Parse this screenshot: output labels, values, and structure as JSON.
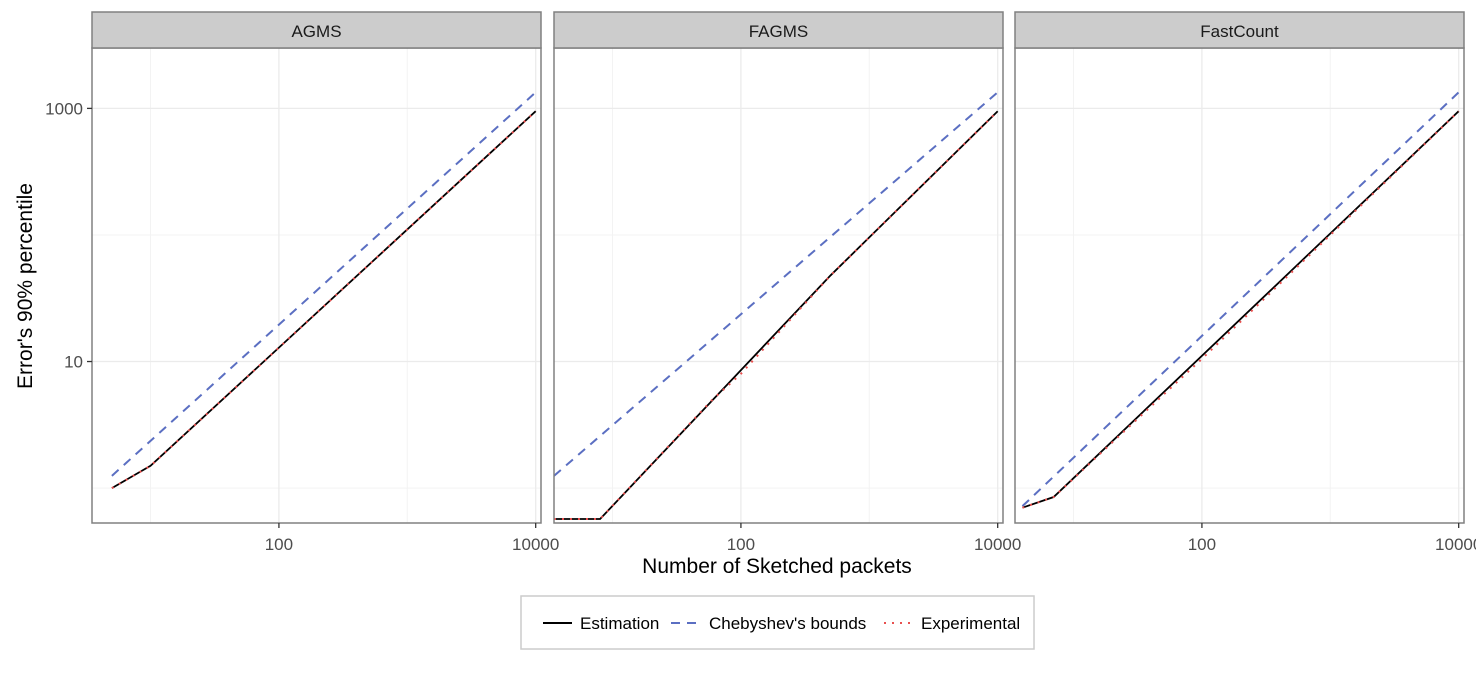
{
  "chart_data": {
    "type": "line",
    "xlabel": "Number of Sketched packets",
    "ylabel": "Error's 90% percentile",
    "x_scale": "log10",
    "y_scale": "log10",
    "xlim": [
      3.5,
      11000
    ],
    "ylim": [
      0.53,
      3000
    ],
    "x_ticks": [
      100,
      10000
    ],
    "x_tick_labels": [
      "100",
      "10000"
    ],
    "y_ticks": [
      10,
      1000
    ],
    "y_tick_labels": [
      "10",
      "1000"
    ],
    "grid": true,
    "legend_position": "bottom",
    "series_styles": [
      {
        "name": "Estimation",
        "color": "#000000",
        "dash": "none"
      },
      {
        "name": "Chebyshev's bounds",
        "color": "#5b6fc2",
        "dash": "9,7"
      },
      {
        "name": "Experimental",
        "color": "#e8504f",
        "dash": "2,6"
      }
    ],
    "panels": [
      {
        "title": "AGMS",
        "series": [
          {
            "name": "Estimation",
            "x": [
              5,
              10,
              10000
            ],
            "y": [
              1.0,
              1.5,
              950
            ]
          },
          {
            "name": "Chebyshev's bounds",
            "x": [
              5,
              10000
            ],
            "y": [
              1.25,
              1340
            ]
          },
          {
            "name": "Experimental",
            "x": [
              5,
              10,
              10000
            ],
            "y": [
              1.0,
              1.5,
              950
            ]
          }
        ]
      },
      {
        "title": "FAGMS",
        "series": [
          {
            "name": "Estimation",
            "x": [
              3.5,
              8,
              500,
              10000
            ],
            "y": [
              0.57,
              0.57,
              48,
              950
            ]
          },
          {
            "name": "Chebyshev's bounds",
            "x": [
              3.5,
              10000
            ],
            "y": [
              1.25,
              1340
            ]
          },
          {
            "name": "Experimental",
            "x": [
              3.5,
              8,
              60,
              100,
              500,
              10000
            ],
            "y": [
              0.57,
              0.57,
              5,
              8,
              48,
              950
            ]
          }
        ]
      },
      {
        "title": "FastCount",
        "series": [
          {
            "name": "Estimation",
            "x": [
              4,
              7,
              10000
            ],
            "y": [
              0.7,
              0.85,
              950
            ]
          },
          {
            "name": "Chebyshev's bounds",
            "x": [
              4,
              10000
            ],
            "y": [
              0.72,
              1340
            ]
          },
          {
            "name": "Experimental",
            "x": [
              4,
              7,
              100,
              10000
            ],
            "y": [
              0.7,
              0.85,
              10.5,
              950
            ]
          }
        ]
      }
    ]
  }
}
